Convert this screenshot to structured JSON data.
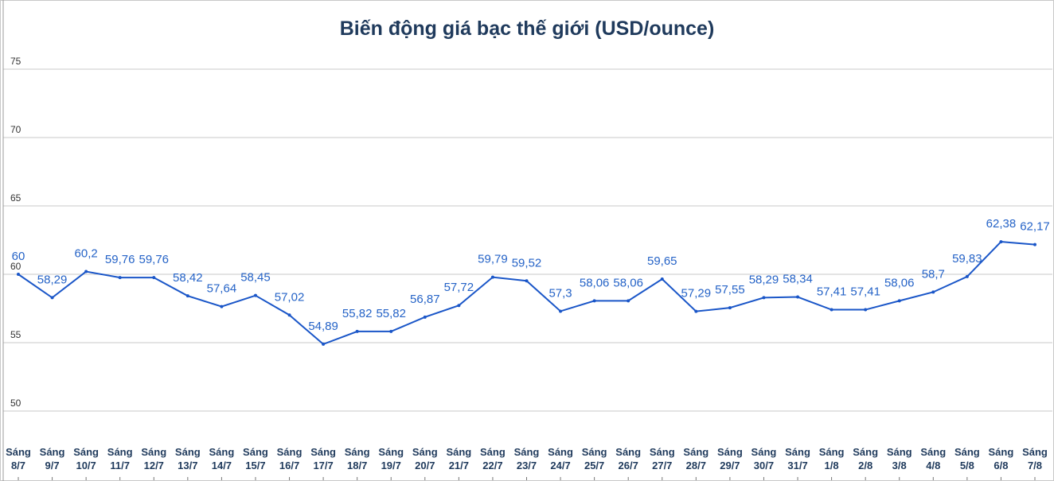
{
  "chart_data": {
    "type": "line",
    "title": "Biến động giá bạc thế giới (USD/ounce)",
    "categories": [
      "Sáng 8/7",
      "Sáng 9/7",
      "Sáng 10/7",
      "Sáng 11/7",
      "Sáng 12/7",
      "Sáng 13/7",
      "Sáng 14/7",
      "Sáng 15/7",
      "Sáng 16/7",
      "Sáng 17/7",
      "Sáng 18/7",
      "Sáng 19/7",
      "Sáng 20/7",
      "Sáng 21/7",
      "Sáng 22/7",
      "Sáng 23/7",
      "Sáng 24/7",
      "Sáng 25/7",
      "Sáng 26/7",
      "Sáng 27/7",
      "Sáng 28/7",
      "Sáng 29/7",
      "Sáng 30/7",
      "Sáng 31/7",
      "Sáng 1/8",
      "Sáng 2/8",
      "Sáng 3/8",
      "Sáng 4/8",
      "Sáng 5/8",
      "Sáng 6/8",
      "Sáng 7/8"
    ],
    "values": [
      60,
      58.29,
      60.2,
      59.76,
      59.76,
      58.42,
      57.64,
      58.45,
      57.02,
      54.89,
      55.82,
      55.82,
      56.87,
      57.72,
      59.79,
      59.52,
      57.3,
      58.06,
      58.06,
      59.65,
      57.29,
      57.55,
      58.29,
      58.34,
      57.41,
      57.41,
      58.06,
      58.7,
      59.83,
      62.38,
      62.17
    ],
    "value_labels": [
      "60",
      "58,29",
      "60,2",
      "59,76",
      "59,76",
      "58,42",
      "57,64",
      "58,45",
      "57,02",
      "54,89",
      "55,82",
      "55,82",
      "56,87",
      "57,72",
      "59,79",
      "59,52",
      "57,3",
      "58,06",
      "58,06",
      "59,65",
      "57,29",
      "57,55",
      "58,29",
      "58,34",
      "57,41",
      "57,41",
      "58,06",
      "58,7",
      "59,83",
      "62,38",
      "62,17"
    ],
    "color": "#1a56c8",
    "ylim": [
      50,
      75
    ],
    "yticks": [
      50,
      55,
      60,
      65,
      70,
      75
    ],
    "grid": true
  }
}
